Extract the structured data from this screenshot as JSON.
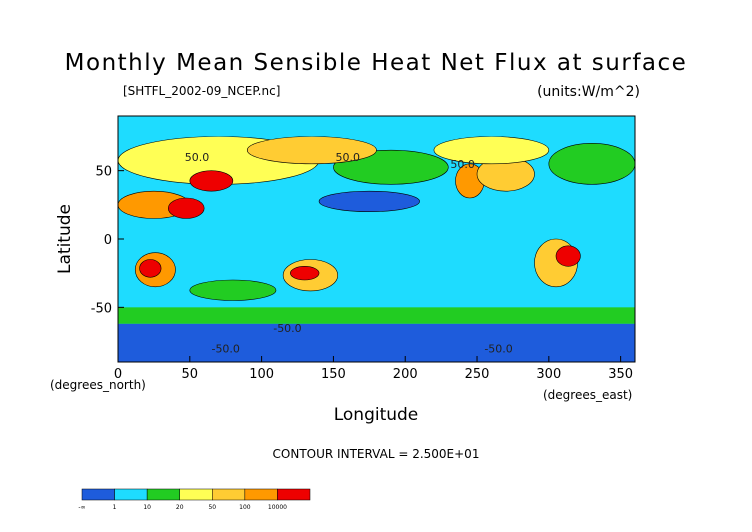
{
  "chart_data": {
    "type": "heatmap",
    "title": "Monthly Mean Sensible Heat Net Flux at surface",
    "file_label": "[SHTFL_2002-09_NCEP.nc]",
    "units_label": "(units:W/m^2)",
    "xlabel": "Longitude",
    "ylabel": "Latitude",
    "x_unit_label": "(degrees_east)",
    "y_unit_label": "(degrees_north)",
    "xlim": [
      0,
      360
    ],
    "ylim": [
      -90,
      90
    ],
    "x_ticks": [
      0,
      50,
      100,
      150,
      200,
      250,
      300,
      350
    ],
    "y_ticks": [
      -50,
      0,
      50
    ],
    "contour_interval_label": "CONTOUR INTERVAL =  2.500E+01",
    "contour_labels": [
      {
        "text": "50.0",
        "lon": 55,
        "lat": 57
      },
      {
        "text": "50.0",
        "lon": 160,
        "lat": 57
      },
      {
        "text": "50.0",
        "lon": 240,
        "lat": 52
      },
      {
        "text": "-50.0",
        "lon": 118,
        "lat": -68
      },
      {
        "text": "-50.0",
        "lon": 75,
        "lat": -83
      },
      {
        "text": "-50.0",
        "lon": 265,
        "lat": -83
      }
    ],
    "colorbar": {
      "colors": [
        "#1e5cdc",
        "#1edcff",
        "#22cc22",
        "#ffff55",
        "#ffcc33",
        "#ff9900",
        "#ee0000"
      ],
      "tick_labels": [
        "-∞",
        "1",
        "10",
        "20",
        "50",
        "100",
        "10000"
      ]
    },
    "regions": [
      {
        "name": "background",
        "lon": [
          0,
          360
        ],
        "lat": [
          -90,
          90
        ],
        "class": 1
      },
      {
        "name": "polar-south",
        "lon": [
          0,
          360
        ],
        "lat": [
          -90,
          -62
        ],
        "class": 0
      },
      {
        "name": "southern-ocean",
        "lon": [
          0,
          360
        ],
        "lat": [
          -62,
          -50
        ],
        "class": 2
      },
      {
        "name": "tropics",
        "lon": [
          0,
          360
        ],
        "lat": [
          -30,
          30
        ],
        "class": 1
      },
      {
        "name": "north-atlantic",
        "lon": [
          300,
          360
        ],
        "lat": [
          40,
          70
        ],
        "class": 2
      },
      {
        "name": "north-pacific",
        "lon": [
          150,
          230
        ],
        "lat": [
          40,
          65
        ],
        "class": 2
      },
      {
        "name": "eurasia",
        "lon": [
          0,
          140
        ],
        "lat": [
          40,
          75
        ],
        "class": 3
      },
      {
        "name": "siberia",
        "lon": [
          90,
          180
        ],
        "lat": [
          55,
          75
        ],
        "class": 4
      },
      {
        "name": "sahara",
        "lon": [
          0,
          50
        ],
        "lat": [
          15,
          35
        ],
        "class": 5
      },
      {
        "name": "arabia",
        "lon": [
          35,
          60
        ],
        "lat": [
          15,
          30
        ],
        "class": 6
      },
      {
        "name": "central-asia",
        "lon": [
          50,
          80
        ],
        "lat": [
          35,
          50
        ],
        "class": 6
      },
      {
        "name": "north-america-west",
        "lon": [
          235,
          255
        ],
        "lat": [
          30,
          55
        ],
        "class": 5
      },
      {
        "name": "north-america",
        "lon": [
          250,
          290
        ],
        "lat": [
          35,
          60
        ],
        "class": 4
      },
      {
        "name": "canada",
        "lon": [
          220,
          300
        ],
        "lat": [
          55,
          75
        ],
        "class": 3
      },
      {
        "name": "southern-africa",
        "lon": [
          12,
          40
        ],
        "lat": [
          -35,
          -10
        ],
        "class": 5
      },
      {
        "name": "kalahari",
        "lon": [
          15,
          30
        ],
        "lat": [
          -28,
          -15
        ],
        "class": 6
      },
      {
        "name": "australia",
        "lon": [
          115,
          153
        ],
        "lat": [
          -38,
          -15
        ],
        "class": 4
      },
      {
        "name": "australia-interior",
        "lon": [
          120,
          140
        ],
        "lat": [
          -30,
          -20
        ],
        "class": 6
      },
      {
        "name": "south-america",
        "lon": [
          290,
          320
        ],
        "lat": [
          -35,
          0
        ],
        "class": 4
      },
      {
        "name": "brazil",
        "lon": [
          305,
          322
        ],
        "lat": [
          -20,
          -5
        ],
        "class": 6
      },
      {
        "name": "arctic",
        "lon": [
          0,
          360
        ],
        "lat": [
          75,
          90
        ],
        "class": 1
      },
      {
        "name": "north-pacific-cold",
        "lon": [
          140,
          210
        ],
        "lat": [
          20,
          35
        ],
        "class": 0
      },
      {
        "name": "indian-ocean",
        "lon": [
          50,
          110
        ],
        "lat": [
          -45,
          -30
        ],
        "class": 2
      }
    ]
  }
}
